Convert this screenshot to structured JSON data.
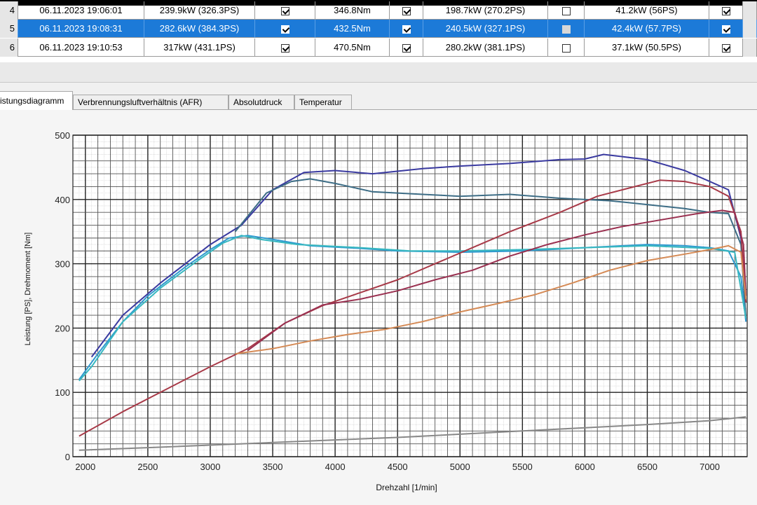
{
  "table": {
    "rows": [
      {
        "idx": "4",
        "date": "06.11.2023 19:06:01",
        "power": "239.9kW (326.3PS)",
        "c1": true,
        "torque": "346.8Nm",
        "c2": true,
        "wheel": "198.7kW (270.2PS)",
        "c3": false,
        "loss": "41.2kW (56PS)",
        "c4": true,
        "selected": false
      },
      {
        "idx": "5",
        "date": "06.11.2023 19:08:31",
        "power": "282.6kW (384.3PS)",
        "c1": true,
        "torque": "432.5Nm",
        "c2": true,
        "wheel": "240.5kW (327.1PS)",
        "c3": false,
        "loss": "42.4kW (57.7PS)",
        "c4": true,
        "selected": true
      },
      {
        "idx": "6",
        "date": "06.11.2023 19:10:53",
        "power": "317kW (431.1PS)",
        "c1": true,
        "torque": "470.5Nm",
        "c2": true,
        "wheel": "280.2kW (381.1PS)",
        "c3": false,
        "loss": "37.1kW (50.5PS)",
        "c4": true,
        "selected": false
      }
    ]
  },
  "tabs": [
    {
      "label": "istungsdiagramm",
      "active": true
    },
    {
      "label": "Verbrennungsluftverhältnis (AFR)",
      "active": false
    },
    {
      "label": "Absolutdruck",
      "active": false
    },
    {
      "label": "Temperatur",
      "active": false
    }
  ],
  "chart_data": {
    "type": "line",
    "xlabel": "Drehzahl [1/min]",
    "ylabel": "Leistung [PS], Drehmoment [Nm]",
    "xlim": [
      1900,
      7300
    ],
    "ylim": [
      0,
      500
    ],
    "x_ticks": [
      2000,
      2500,
      3000,
      3500,
      4000,
      4500,
      5000,
      5500,
      6000,
      6500,
      7000
    ],
    "y_ticks": [
      0,
      100,
      200,
      300,
      400,
      500
    ],
    "grid": true,
    "series": [
      {
        "color": "#3a3aa0",
        "points": [
          [
            2050,
            155
          ],
          [
            2300,
            220
          ],
          [
            2600,
            270
          ],
          [
            3000,
            330
          ],
          [
            3250,
            360
          ],
          [
            3500,
            415
          ],
          [
            3750,
            442
          ],
          [
            4000,
            445
          ],
          [
            4300,
            440
          ],
          [
            4700,
            448
          ],
          [
            5000,
            452
          ],
          [
            5400,
            456
          ],
          [
            5800,
            462
          ],
          [
            6000,
            463
          ],
          [
            6150,
            470
          ],
          [
            6500,
            462
          ],
          [
            6800,
            445
          ],
          [
            7000,
            428
          ],
          [
            7150,
            415
          ],
          [
            7250,
            340
          ],
          [
            7290,
            210
          ]
        ]
      },
      {
        "color": "#3d6d86",
        "points": [
          [
            3200,
            350
          ],
          [
            3450,
            410
          ],
          [
            3650,
            428
          ],
          [
            3800,
            432
          ],
          [
            4000,
            425
          ],
          [
            4300,
            412
          ],
          [
            4700,
            408
          ],
          [
            5000,
            405
          ],
          [
            5400,
            408
          ],
          [
            5800,
            402
          ],
          [
            6200,
            398
          ],
          [
            6500,
            392
          ],
          [
            6800,
            386
          ],
          [
            7000,
            380
          ],
          [
            7150,
            378
          ],
          [
            7250,
            330
          ],
          [
            7290,
            215
          ]
        ]
      },
      {
        "color": "#2f9ad0",
        "points": [
          [
            1950,
            120
          ],
          [
            2100,
            160
          ],
          [
            2300,
            210
          ],
          [
            2500,
            250
          ],
          [
            2800,
            295
          ],
          [
            3000,
            322
          ],
          [
            3150,
            340
          ],
          [
            3300,
            344
          ],
          [
            3500,
            338
          ],
          [
            3800,
            328
          ],
          [
            4200,
            324
          ],
          [
            4500,
            320
          ],
          [
            5000,
            318
          ],
          [
            5500,
            320
          ],
          [
            6000,
            325
          ],
          [
            6500,
            330
          ],
          [
            6800,
            328
          ],
          [
            7000,
            325
          ],
          [
            7150,
            320
          ],
          [
            7250,
            280
          ],
          [
            7290,
            210
          ]
        ]
      },
      {
        "color": "#38b8c0",
        "points": [
          [
            1950,
            118
          ],
          [
            2050,
            140
          ],
          [
            2300,
            210
          ],
          [
            2600,
            262
          ],
          [
            2900,
            305
          ],
          [
            3100,
            332
          ],
          [
            3250,
            344
          ],
          [
            3400,
            338
          ],
          [
            3700,
            330
          ],
          [
            4200,
            325
          ],
          [
            4600,
            320
          ],
          [
            5000,
            320
          ],
          [
            5500,
            322
          ],
          [
            6000,
            325
          ],
          [
            6500,
            328
          ],
          [
            7000,
            324
          ],
          [
            7200,
            318
          ],
          [
            7290,
            215
          ]
        ]
      },
      {
        "color": "#a83a48",
        "points": [
          [
            1950,
            32
          ],
          [
            2300,
            70
          ],
          [
            2700,
            110
          ],
          [
            3000,
            140
          ],
          [
            3300,
            168
          ],
          [
            3600,
            208
          ],
          [
            3900,
            235
          ],
          [
            4200,
            255
          ],
          [
            4500,
            275
          ],
          [
            4800,
            300
          ],
          [
            5100,
            325
          ],
          [
            5400,
            350
          ],
          [
            5800,
            380
          ],
          [
            6100,
            405
          ],
          [
            6400,
            420
          ],
          [
            6600,
            430
          ],
          [
            6800,
            428
          ],
          [
            7000,
            420
          ],
          [
            7150,
            405
          ],
          [
            7250,
            350
          ],
          [
            7290,
            240
          ]
        ]
      },
      {
        "color": "#9a3050",
        "points": [
          [
            3300,
            165
          ],
          [
            3600,
            208
          ],
          [
            3900,
            236
          ],
          [
            4200,
            245
          ],
          [
            4500,
            258
          ],
          [
            4800,
            275
          ],
          [
            5100,
            290
          ],
          [
            5400,
            312
          ],
          [
            5700,
            330
          ],
          [
            6000,
            345
          ],
          [
            6300,
            358
          ],
          [
            6600,
            368
          ],
          [
            6900,
            378
          ],
          [
            7100,
            383
          ],
          [
            7200,
            380
          ],
          [
            7270,
            330
          ],
          [
            7290,
            250
          ]
        ]
      },
      {
        "color": "#d58a55",
        "points": [
          [
            3200,
            160
          ],
          [
            3500,
            168
          ],
          [
            3800,
            180
          ],
          [
            4100,
            190
          ],
          [
            4400,
            198
          ],
          [
            4700,
            210
          ],
          [
            5000,
            225
          ],
          [
            5300,
            238
          ],
          [
            5600,
            252
          ],
          [
            5900,
            270
          ],
          [
            6200,
            290
          ],
          [
            6500,
            305
          ],
          [
            6800,
            315
          ],
          [
            7000,
            322
          ],
          [
            7150,
            328
          ],
          [
            7250,
            318
          ],
          [
            7290,
            245
          ]
        ]
      },
      {
        "color": "#888888",
        "points": [
          [
            1950,
            10
          ],
          [
            2500,
            14
          ],
          [
            3000,
            18
          ],
          [
            3500,
            22
          ],
          [
            4000,
            26
          ],
          [
            4500,
            30
          ],
          [
            5000,
            35
          ],
          [
            5500,
            40
          ],
          [
            6000,
            45
          ],
          [
            6500,
            50
          ],
          [
            7000,
            56
          ],
          [
            7200,
            60
          ],
          [
            7290,
            62
          ]
        ]
      }
    ]
  }
}
